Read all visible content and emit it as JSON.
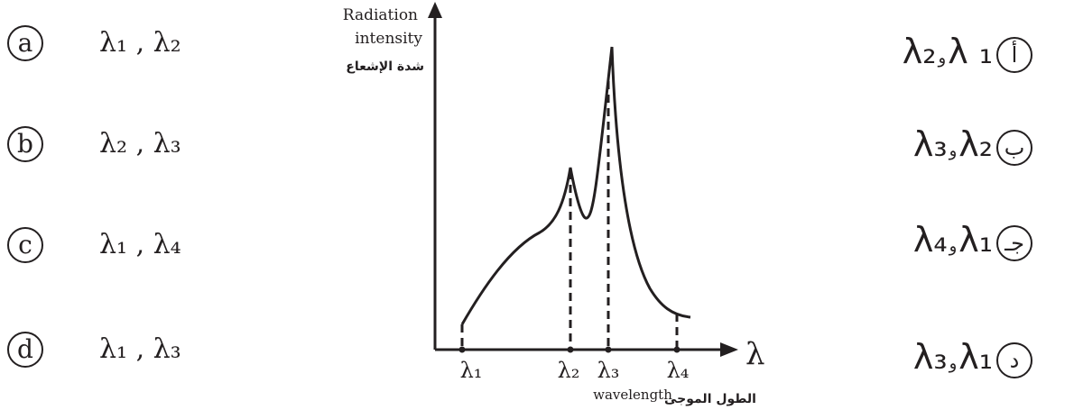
{
  "options_en": [
    {
      "letter": "a",
      "value": "λ₁ , λ₂"
    },
    {
      "letter": "b",
      "value": "λ₂ , λ₃"
    },
    {
      "letter": "c",
      "value": "λ₁ , λ₄"
    },
    {
      "letter": "d",
      "value": "λ₁ , λ₃"
    }
  ],
  "options_ar": [
    {
      "letter": "أ",
      "left": "λ₂",
      "conj": "و",
      "right": "λ ₁"
    },
    {
      "letter": "ب",
      "left": "λ₃",
      "conj": "و",
      "right": "λ₂"
    },
    {
      "letter": "جـ",
      "left": "λ₄",
      "conj": "و",
      "right": "λ₁"
    },
    {
      "letter": "د",
      "left": "λ₃",
      "conj": "و",
      "right": "λ₁"
    }
  ],
  "graph": {
    "y_label_line1": "Radiation",
    "y_label_line2": "intensity",
    "y_label_ar": "شدة الإشعاع",
    "x_symbol": "λ",
    "x_label_en": "wavelength",
    "x_label_ar": "الطول الموجى",
    "markers": [
      {
        "label": "λ₁",
        "pos": 1
      },
      {
        "label": "λ₂",
        "pos": 2
      },
      {
        "label": "λ₃",
        "pos": 3
      },
      {
        "label": "λ₄",
        "pos": 4
      }
    ]
  }
}
